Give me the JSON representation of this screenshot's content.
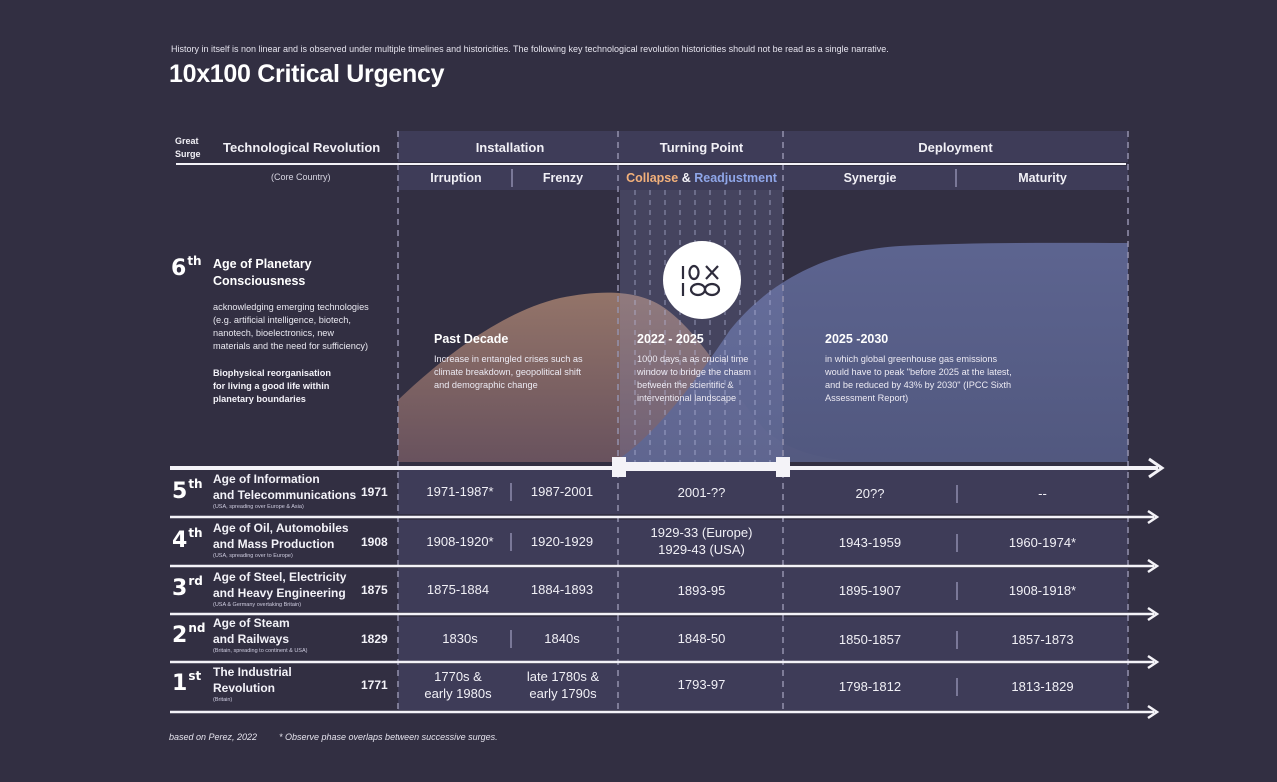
{
  "intro": "History in itself is non linear and is observed under multiple timelines and historicities. The following key technological revolution historicities should not be read as a single narrative.",
  "title": "10x100 Critical Urgency",
  "header": {
    "great_surge": [
      "Great",
      "Surge"
    ],
    "tech_revolution": "Technological Revolution",
    "core_country": "(Core Country)",
    "installation": "Installation",
    "turning_point": "Turning Point",
    "deployment": "Deployment",
    "irruption": "Irruption",
    "frenzy": "Frenzy",
    "collapse": "Collapse",
    "amp": "&",
    "readjustment": "Readjustment",
    "synergie": "Synergie",
    "maturity": "Maturity"
  },
  "colors": {
    "collapse": "#f2b07a",
    "readjustment": "#8fa6e8",
    "background": "#322f42",
    "band": "#3e3c58"
  },
  "logo": {
    "icon": "10x100-logo-icon",
    "text": "10X100"
  },
  "sixth": {
    "ordinal": "6",
    "suffix": "th",
    "name_line1": "Age of Planetary",
    "name_line2": "Consciousness",
    "desc": [
      "acknowledging emerging technologies",
      "(e.g. artificial intelligence, biotech,",
      "nanotech, bioelectronics, new",
      "materials and the need for sufficiency)"
    ],
    "bio": [
      "Biophysical reorganisation",
      "for living a good life within",
      "planetary boundaries"
    ]
  },
  "phases": [
    {
      "heading": "Past Decade",
      "lines": [
        "Increase in entangled crises such as",
        "climate breakdown, geopolitical shift",
        "and demographic change"
      ]
    },
    {
      "heading": "2022 - 2025",
      "lines": [
        "1000  days a as crucial time",
        "window to bridge the chasm",
        "between the scientific &",
        "interventional landscape"
      ]
    },
    {
      "heading": "2025 -2030",
      "lines": [
        "in which global greenhouse gas emissions",
        "would have to peak \"before 2025 at the latest,",
        "and be reduced by 43% by 2030\" (IPCC Sixth",
        "Assessment Report)"
      ]
    }
  ],
  "rows": [
    {
      "ordinal": "5",
      "suffix": "th",
      "name1": "Age of Information",
      "name2": "and Telecommunications",
      "sub": "(USA, spreading over Europe & Asia)",
      "year": "1971",
      "irruption": [
        "1971-1987*"
      ],
      "frenzy": [
        "1987-2001"
      ],
      "turning": [
        "2001-??"
      ],
      "synergie": [
        "20??"
      ],
      "maturity": [
        "--"
      ]
    },
    {
      "ordinal": "4",
      "suffix": "th",
      "name1": "Age of Oil, Automobiles",
      "name2": "and Mass Production",
      "sub": "(USA, spreading over to Europe)",
      "year": "1908",
      "irruption": [
        "1908-1920*"
      ],
      "frenzy": [
        "1920-1929"
      ],
      "turning": [
        "1929-33 (Europe)",
        "1929-43 (USA)"
      ],
      "synergie": [
        "1943-1959"
      ],
      "maturity": [
        "1960-1974*"
      ]
    },
    {
      "ordinal": "3",
      "suffix": "rd",
      "name1": "Age of Steel, Electricity",
      "name2": "and Heavy Engineering",
      "sub": "(USA & Germany overtaking Britain)",
      "year": "1875",
      "irruption": [
        "1875-1884"
      ],
      "frenzy": [
        "1884-1893"
      ],
      "turning": [
        "1893-95"
      ],
      "synergie": [
        "1895-1907"
      ],
      "maturity": [
        "1908-1918*"
      ]
    },
    {
      "ordinal": "2",
      "suffix": "nd",
      "name1": "Age of Steam",
      "name2": "and Railways",
      "sub": "(Britain, spreading to continent & USA)",
      "year": "1829",
      "irruption": [
        "1830s"
      ],
      "frenzy": [
        "1840s"
      ],
      "turning": [
        "1848-50"
      ],
      "synergie": [
        "1850-1857"
      ],
      "maturity": [
        "1857-1873"
      ]
    },
    {
      "ordinal": "1",
      "suffix": "st",
      "name1": "The Industrial",
      "name2": "Revolution",
      "sub": "(Britain)",
      "year": "1771",
      "irruption": [
        "1770s &",
        "early 1980s"
      ],
      "frenzy": [
        "late 1780s &",
        "early 1790s"
      ],
      "turning": [
        "1793-97"
      ],
      "synergie": [
        "1798-1812"
      ],
      "maturity": [
        "1813-1829"
      ]
    }
  ],
  "footer": {
    "source": "based on Perez, 2022",
    "note": "* Observe phase overlaps between successive surges."
  }
}
